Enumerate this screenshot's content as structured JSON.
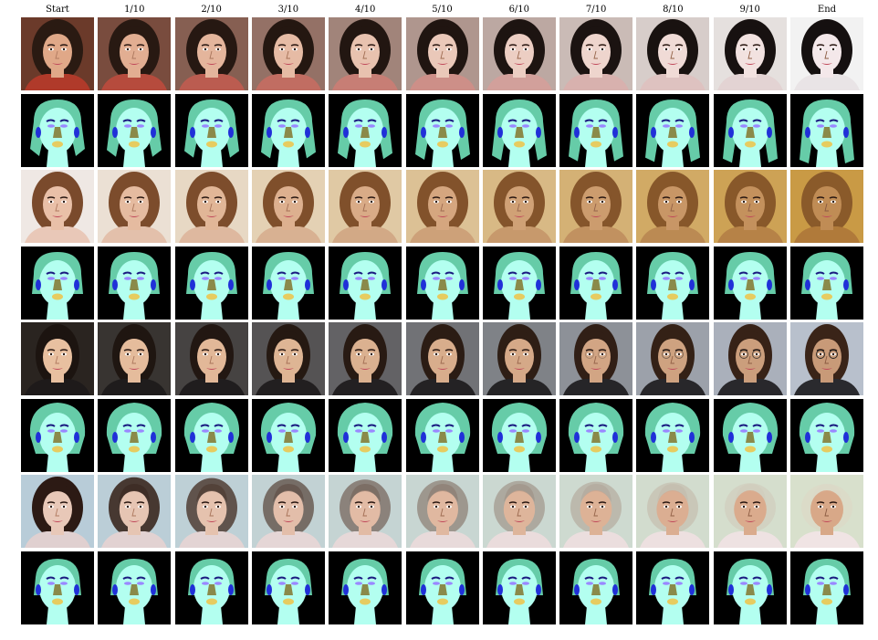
{
  "figure": {
    "column_labels": [
      "Start",
      "1/10",
      "2/10",
      "3/10",
      "4/10",
      "5/10",
      "6/10",
      "7/10",
      "8/10",
      "9/10",
      "End"
    ],
    "rows": [
      {
        "kind": "photo",
        "subject": "woman-dark-hair",
        "bg_start": "#6b3a2a",
        "bg_end": "#f2f2f2",
        "hair_start": "#2a1a12",
        "hair_end": "#151010",
        "skin_start": "#e0a888",
        "skin_end": "#f4e8ea",
        "cloth_start": "#b03a2a",
        "cloth_end": "#e9e4e6"
      },
      {
        "kind": "mask",
        "variant": "long-hair"
      },
      {
        "kind": "photo",
        "subject": "woman-brown-hair",
        "bg_start": "#efe8e4",
        "bg_end": "#c99a45",
        "hair_start": "#7a4a2c",
        "hair_end": "#8a5a2a",
        "skin_start": "#e9c0a8",
        "skin_end": "#c08c55",
        "cloth_start": "#e9c8b8",
        "cloth_end": "#b07a3a"
      },
      {
        "kind": "mask",
        "variant": "short-hair"
      },
      {
        "kind": "photo",
        "subject": "man-short-hair",
        "bg_start": "#2a2420",
        "bg_end": "#b8c0cc",
        "hair_start": "#1c1410",
        "hair_end": "#3a2418",
        "skin_start": "#e8c0a0",
        "skin_end": "#c89a78",
        "cloth_start": "#1e1a1a",
        "cloth_end": "#2a2a2e"
      },
      {
        "kind": "mask",
        "variant": "round-hair"
      },
      {
        "kind": "photo",
        "subject": "woman-to-bald-man",
        "bg_start": "#b8ccd8",
        "bg_end": "#d8e0cc",
        "hair_start": "#2c1a14",
        "hair_end": "#e0d0c0",
        "skin_start": "#e8c8b8",
        "skin_end": "#d8a888",
        "cloth_start": "#e0d0d0",
        "cloth_end": "#f0e4e4"
      },
      {
        "kind": "mask",
        "variant": "bald"
      }
    ],
    "mask_colors": {
      "background": "#000000",
      "hair": "#66cca8",
      "face": "#b3fff0",
      "brows": "#1a1a80",
      "eyes": "#9a88ff",
      "nose": "#8a8a4a",
      "mouth": "#e6cc60",
      "ears": "#2030d8"
    }
  }
}
